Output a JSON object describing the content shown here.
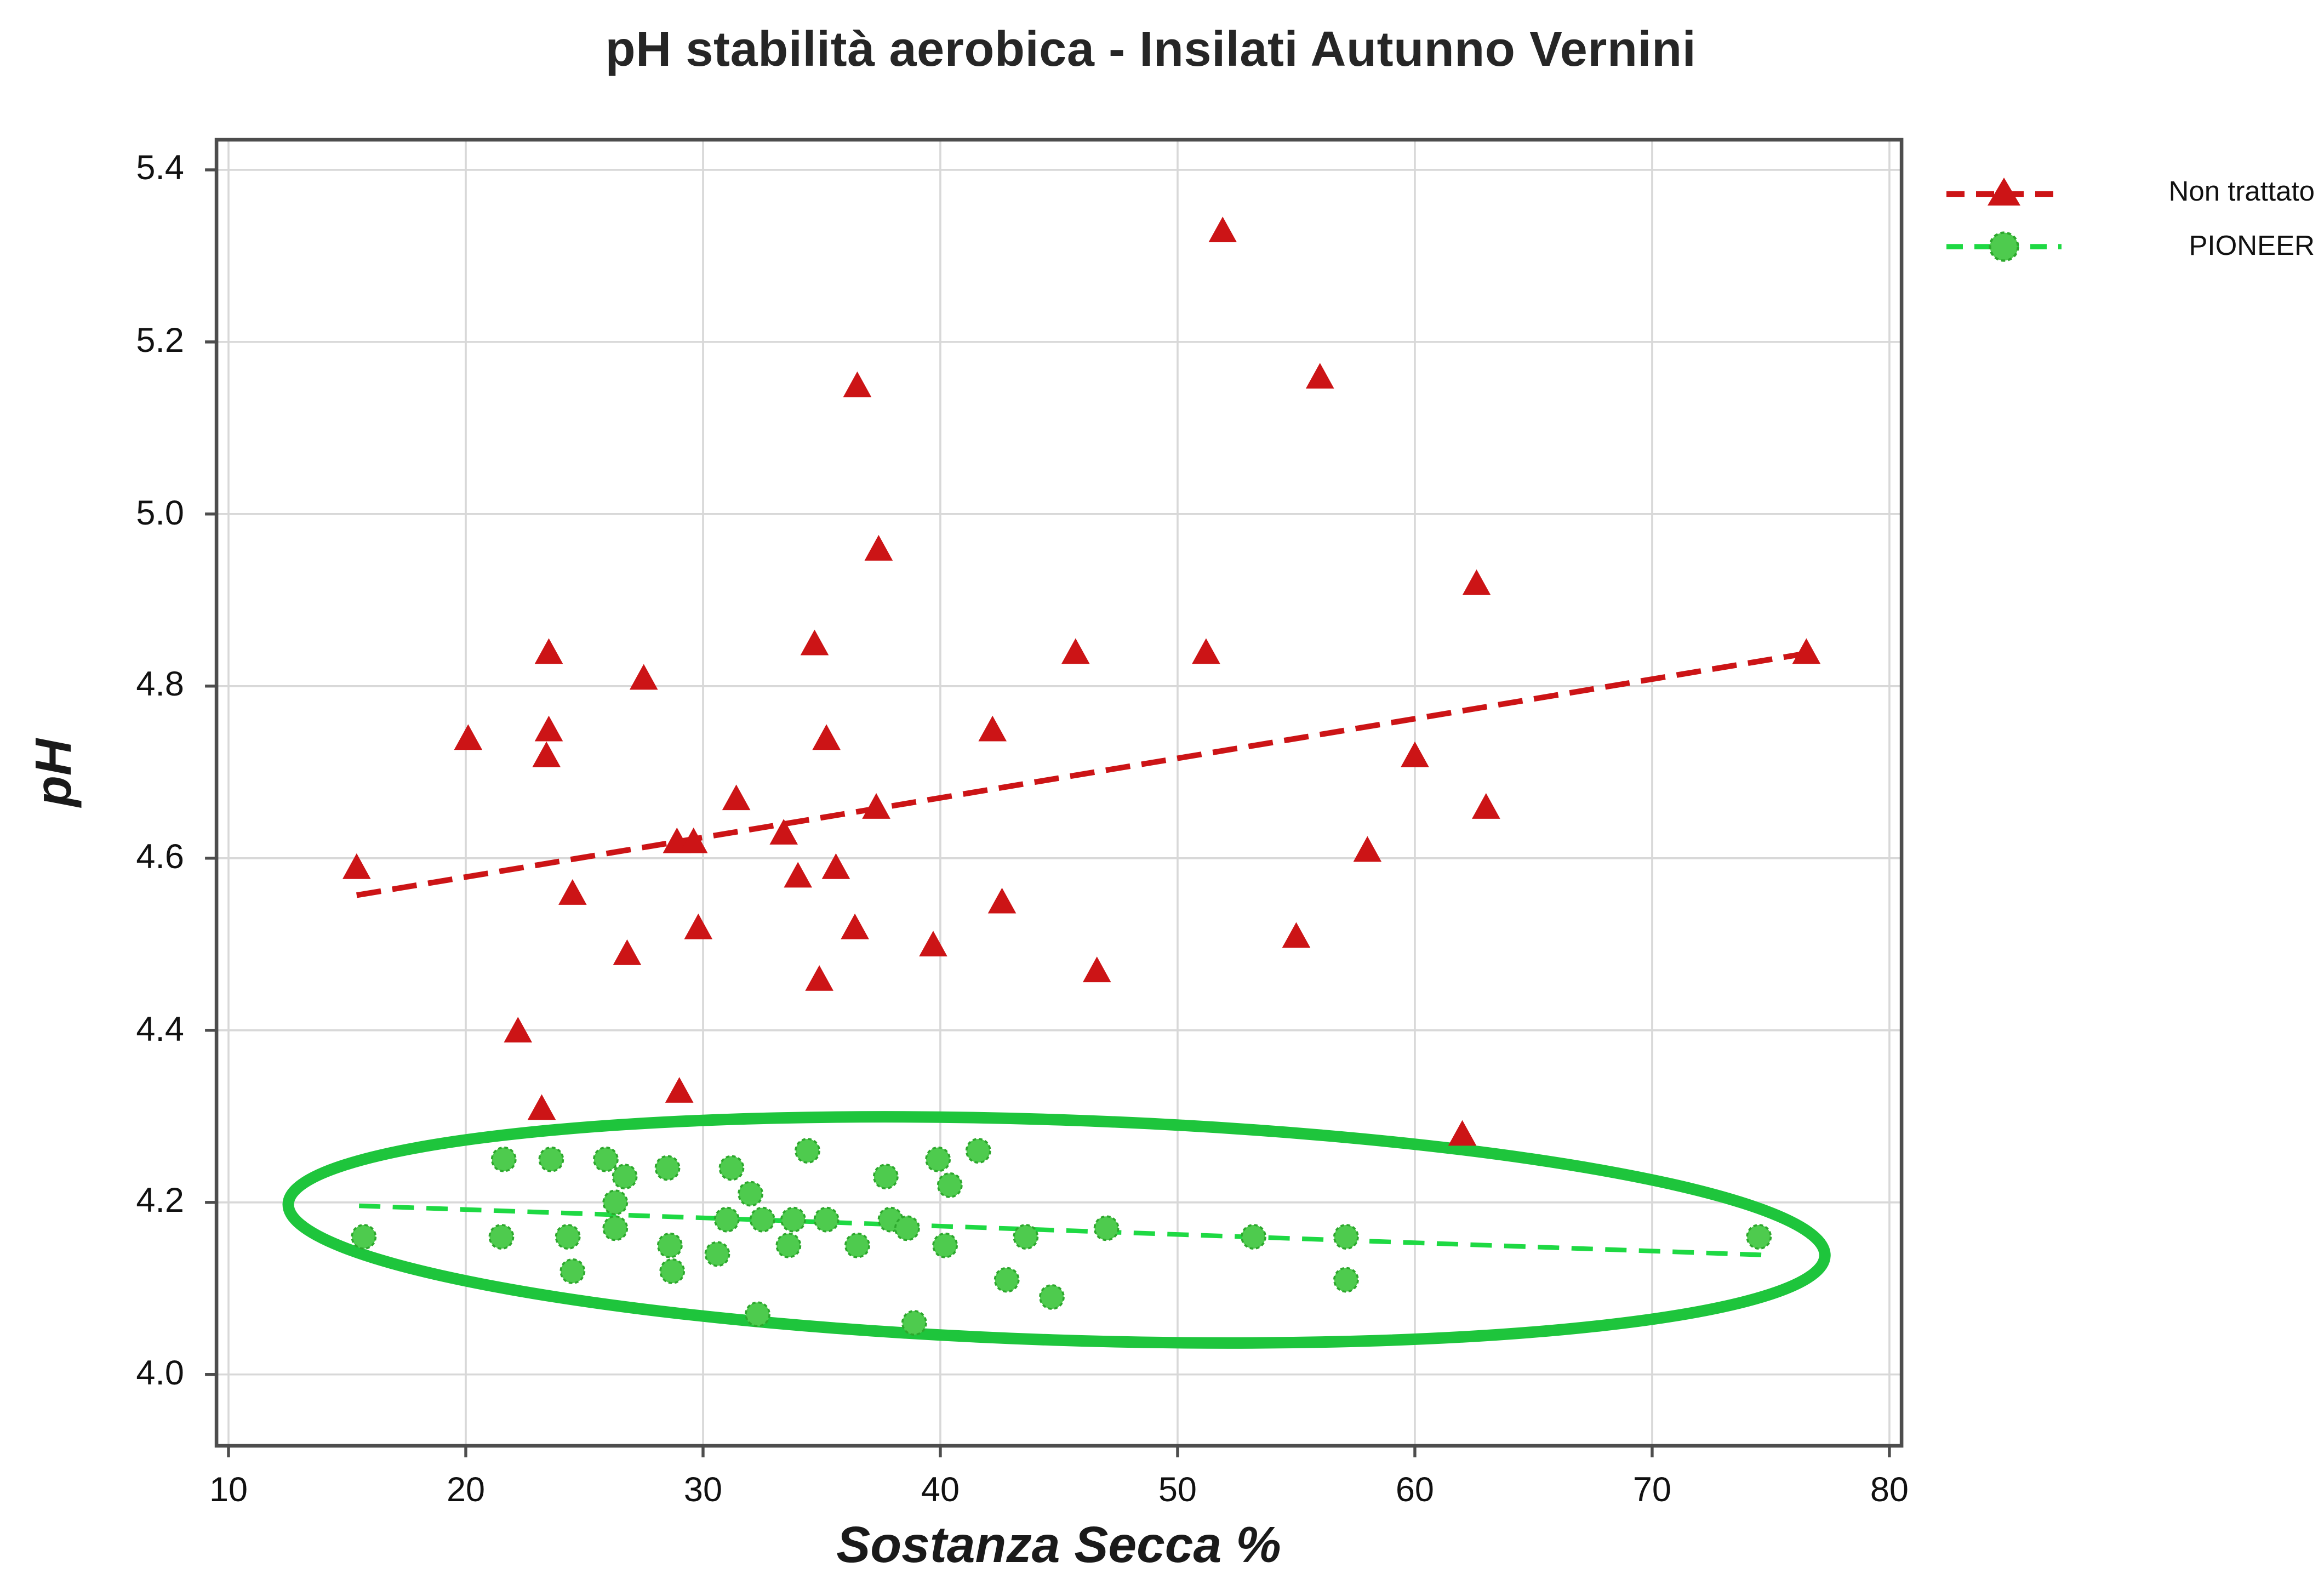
{
  "chart_data": {
    "type": "scatter",
    "title": "pH stabilità aerobica - Insilati Autunno Vernini",
    "xlabel": "Sostanza Secca %",
    "ylabel": "pH",
    "x_ticks": [
      10,
      20,
      30,
      40,
      50,
      60,
      70,
      80
    ],
    "y_ticks": [
      "5.4",
      "5.2",
      "5.0",
      "4.8",
      "4.6",
      "4.4",
      "4.2",
      "4.0"
    ],
    "xlim": [
      9.5,
      80.5
    ],
    "ylim": [
      3.92,
      5.43
    ],
    "grid": true,
    "legend_position": "top-right-outside",
    "colors": {
      "red": "#CC1416",
      "green_fill": "#4ECB4E",
      "green_edge": "#2DA82D",
      "green_line": "#1ED943",
      "ellipse": "#1EC53C",
      "gridline": "#D8D8D8",
      "frame": "#4D4D4D"
    },
    "series": [
      {
        "name": "Non trattato",
        "marker": "triangle",
        "color": "#CC1416",
        "points": [
          [
            15.4,
            4.59
          ],
          [
            20.1,
            4.74
          ],
          [
            22.2,
            4.4
          ],
          [
            23.2,
            4.31
          ],
          [
            23.5,
            4.84
          ],
          [
            23.5,
            4.75
          ],
          [
            23.4,
            4.72
          ],
          [
            24.5,
            4.56
          ],
          [
            26.8,
            4.49
          ],
          [
            27.5,
            4.81
          ],
          [
            28.9,
            4.62
          ],
          [
            29.6,
            4.62
          ],
          [
            29.0,
            4.33
          ],
          [
            29.8,
            4.52
          ],
          [
            31.4,
            4.67
          ],
          [
            33.4,
            4.63
          ],
          [
            34.0,
            4.58
          ],
          [
            34.7,
            4.85
          ],
          [
            34.9,
            4.46
          ],
          [
            35.2,
            4.74
          ],
          [
            35.6,
            4.59
          ],
          [
            36.4,
            4.52
          ],
          [
            36.5,
            5.15
          ],
          [
            37.3,
            4.66
          ],
          [
            37.4,
            4.96
          ],
          [
            39.7,
            4.5
          ],
          [
            42.2,
            4.75
          ],
          [
            42.6,
            4.55
          ],
          [
            45.7,
            4.84
          ],
          [
            46.6,
            4.47
          ],
          [
            51.2,
            4.84
          ],
          [
            51.9,
            5.33
          ],
          [
            55.0,
            4.51
          ],
          [
            56.0,
            5.16
          ],
          [
            58.0,
            4.61
          ],
          [
            60.0,
            4.72
          ],
          [
            62.0,
            4.28
          ],
          [
            62.6,
            4.92
          ],
          [
            63.0,
            4.66
          ],
          [
            76.5,
            4.84
          ]
        ],
        "trend": {
          "x1": 15.4,
          "y1": 4.557,
          "x2": 76.5,
          "y2": 4.838
        }
      },
      {
        "name": "PIONEER",
        "marker": "circle",
        "color": "#4ECB4E",
        "points": [
          [
            15.7,
            4.16
          ],
          [
            21.5,
            4.16
          ],
          [
            21.6,
            4.25
          ],
          [
            23.6,
            4.25
          ],
          [
            24.3,
            4.16
          ],
          [
            24.5,
            4.12
          ],
          [
            25.9,
            4.25
          ],
          [
            26.3,
            4.2
          ],
          [
            26.3,
            4.17
          ],
          [
            26.7,
            4.23
          ],
          [
            28.5,
            4.24
          ],
          [
            28.6,
            4.15
          ],
          [
            28.7,
            4.12
          ],
          [
            30.6,
            4.14
          ],
          [
            31.2,
            4.24
          ],
          [
            31.0,
            4.18
          ],
          [
            32.0,
            4.21
          ],
          [
            32.3,
            4.07
          ],
          [
            32.5,
            4.18
          ],
          [
            33.6,
            4.15
          ],
          [
            33.8,
            4.18
          ],
          [
            34.4,
            4.26
          ],
          [
            35.2,
            4.18
          ],
          [
            36.5,
            4.15
          ],
          [
            37.7,
            4.23
          ],
          [
            37.9,
            4.18
          ],
          [
            38.6,
            4.17
          ],
          [
            38.9,
            4.06
          ],
          [
            39.9,
            4.25
          ],
          [
            40.2,
            4.15
          ],
          [
            40.4,
            4.22
          ],
          [
            41.6,
            4.26
          ],
          [
            42.8,
            4.11
          ],
          [
            43.6,
            4.16
          ],
          [
            44.7,
            4.09
          ],
          [
            47.0,
            4.17
          ],
          [
            53.2,
            4.16
          ],
          [
            57.1,
            4.16
          ],
          [
            57.1,
            4.11
          ],
          [
            74.5,
            4.16
          ]
        ],
        "trend": {
          "x1": 15.5,
          "y1": 4.196,
          "x2": 74.6,
          "y2": 4.139
        }
      }
    ],
    "ellipse": {
      "cx": 44.9,
      "cy": 4.168,
      "rx_x": 32.4,
      "ry_y": 0.128,
      "rotate_deg": 1.93
    }
  }
}
